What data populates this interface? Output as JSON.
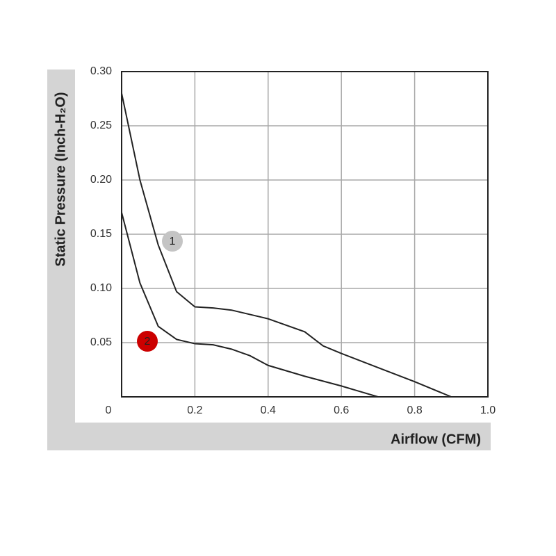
{
  "chart_data": {
    "type": "line",
    "xlabel": "Airflow (CFM)",
    "ylabel": "Static Pressure (Inch-H₂O)",
    "xlim": [
      0,
      1
    ],
    "ylim": [
      0,
      0.3
    ],
    "xticks": [
      0,
      0.2,
      0.4,
      0.6,
      0.8,
      {
        "value": 1,
        "label": "1.0"
      }
    ],
    "yticks": [
      0.05,
      {
        "value": 0.1,
        "label": "0.10"
      },
      0.15,
      {
        "value": 0.2,
        "label": "0.20"
      },
      0.25,
      {
        "value": 0.3,
        "label": "0.30"
      }
    ],
    "grid": true,
    "series": [
      {
        "name": "1",
        "color": "#222222",
        "marker_color": "#c4c4c4",
        "x": [
          0,
          0.05,
          0.1,
          0.15,
          0.2,
          0.25,
          0.3,
          0.4,
          0.5,
          0.55,
          0.6,
          0.7,
          0.8,
          0.9
        ],
        "values": [
          0.28,
          0.2,
          0.14,
          0.097,
          0.083,
          0.082,
          0.08,
          0.072,
          0.06,
          0.047,
          0.04,
          0.027,
          0.014,
          0
        ]
      },
      {
        "name": "2",
        "color": "#222222",
        "marker_color": "#cc0000",
        "x": [
          0,
          0.05,
          0.1,
          0.15,
          0.2,
          0.25,
          0.3,
          0.35,
          0.4,
          0.5,
          0.6,
          0.7
        ],
        "values": [
          0.17,
          0.105,
          0.065,
          0.053,
          0.049,
          0.048,
          0.044,
          0.038,
          0.029,
          0.019,
          0.01,
          0
        ]
      }
    ]
  }
}
